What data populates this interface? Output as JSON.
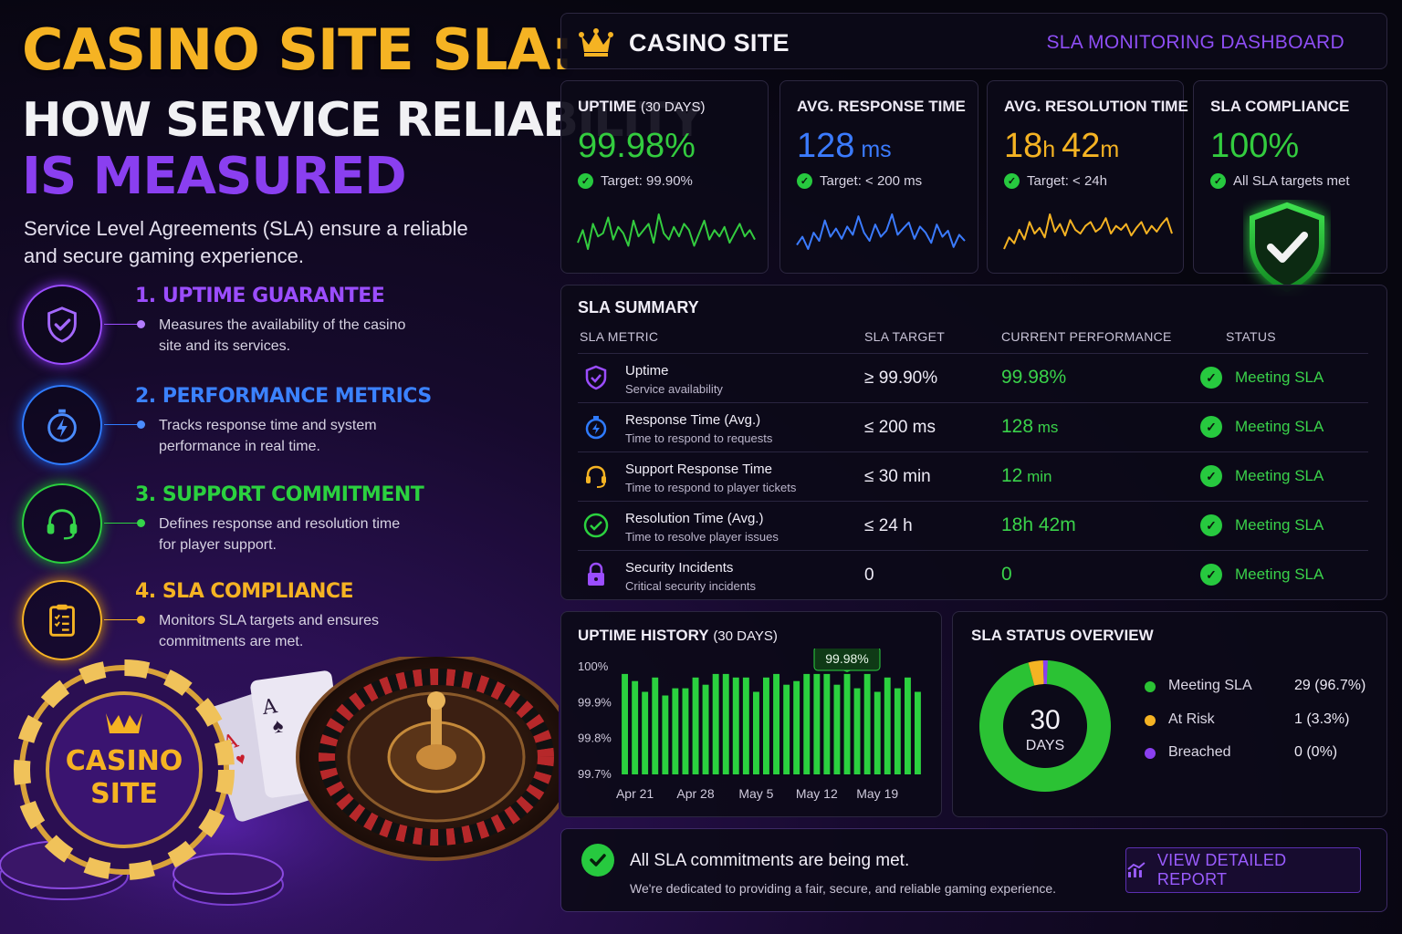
{
  "hero": {
    "line1": "CASINO SITE SLA:",
    "line2": "HOW SERVICE RELIABILITY",
    "line3": "IS MEASURED",
    "subtitle": "Service Level Agreements (SLA) ensure a reliable and secure gaming experience."
  },
  "features": [
    {
      "title": "1. UPTIME GUARANTEE",
      "desc": "Measures the availability of the casino site and its services.",
      "icon": "shield-check-icon",
      "color": "#9b4dff"
    },
    {
      "title": "2. PERFORMANCE METRICS",
      "desc": "Tracks response time and system performance in real time.",
      "icon": "stopwatch-lightning-icon",
      "color": "#2f7bff"
    },
    {
      "title": "3. SUPPORT COMMITMENT",
      "desc": "Defines response and resolution time for player support.",
      "icon": "headset-icon",
      "color": "#2bd13f"
    },
    {
      "title": "4. SLA COMPLIANCE",
      "desc": "Monitors SLA targets and ensures commitments are  met.",
      "icon": "clipboard-checklist-icon",
      "color": "#f5b323"
    }
  ],
  "art": {
    "chip_line1": "CASINO",
    "chip_line2": "SITE"
  },
  "header": {
    "site": "CASINO SITE",
    "dashboard": "SLA MONITORING DASHBOARD"
  },
  "kpis": [
    {
      "title": "UPTIME",
      "title_suffix": "(30 DAYS)",
      "value": "99.98%",
      "unit": "",
      "target": "Target: 99.90%",
      "color": "#33cc3f"
    },
    {
      "title": "AVG. RESPONSE TIME",
      "title_suffix": "",
      "value": "128",
      "unit": " ms",
      "target": "Target: < 200 ms",
      "color": "#3b7bff"
    },
    {
      "title": "AVG. RESOLUTION TIME",
      "title_suffix": "",
      "value_parts": [
        "18",
        "h ",
        "42",
        "m"
      ],
      "target": "Target: < 24h",
      "color": "#f5b323"
    },
    {
      "title": "SLA COMPLIANCE",
      "title_suffix": "",
      "value": "100%",
      "unit": "",
      "target": "All SLA targets met",
      "color": "#33cc3f"
    }
  ],
  "summary": {
    "title": "SLA SUMMARY",
    "columns": [
      "SLA METRIC",
      "SLA TARGET",
      "CURRENT PERFORMANCE",
      "STATUS"
    ],
    "rows": [
      {
        "name": "Uptime",
        "sub": "Service availability",
        "target": "≥ 99.90%",
        "perf": "99.98%",
        "perf_unit": "",
        "status": "Meeting SLA",
        "icon": "shield-check-icon",
        "icon_color": "#9b4dff"
      },
      {
        "name": "Response Time (Avg.)",
        "sub": "Time to respond to requests",
        "target": "≤ 200 ms",
        "perf": "128",
        "perf_unit": " ms",
        "status": "Meeting SLA",
        "icon": "stopwatch-icon",
        "icon_color": "#2f7bff"
      },
      {
        "name": "Support Response Time",
        "sub": "Time to respond to player tickets",
        "target": "≤ 30 min",
        "perf": "12",
        "perf_unit": " min",
        "status": "Meeting SLA",
        "icon": "headset-icon",
        "icon_color": "#f5b323"
      },
      {
        "name": "Resolution Time (Avg.)",
        "sub": "Time to resolve player issues",
        "target": "≤ 24 h",
        "perf": "18h 42m",
        "perf_unit": "",
        "status": "Meeting SLA",
        "icon": "check-circle-icon",
        "icon_color": "#2bd13f"
      },
      {
        "name": "Security Incidents",
        "sub": "Critical security incidents",
        "target": "0",
        "perf": "0",
        "perf_unit": "",
        "status": "Meeting SLA",
        "icon": "lock-icon",
        "icon_color": "#9b4dff"
      }
    ]
  },
  "chart_data": [
    {
      "type": "bar",
      "title": "UPTIME HISTORY",
      "title_suffix": "(30 DAYS)",
      "ylim": [
        99.7,
        100
      ],
      "ytick_labels": [
        "100%",
        "99.9%",
        "99.8%",
        "99.7%"
      ],
      "ytick_values": [
        100,
        99.9,
        99.8,
        99.7
      ],
      "xtick_labels": [
        "Apr 21",
        "Apr 28",
        "May 5",
        "May 12",
        "May 19"
      ],
      "xtick_index": [
        1,
        7,
        13,
        19,
        25
      ],
      "values": [
        99.98,
        99.96,
        99.93,
        99.97,
        99.92,
        99.94,
        99.94,
        99.97,
        99.95,
        99.98,
        99.98,
        99.97,
        99.97,
        99.93,
        99.97,
        99.98,
        99.95,
        99.96,
        99.98,
        99.98,
        99.98,
        99.95,
        99.98,
        99.94,
        99.98,
        99.93,
        99.97,
        99.94,
        99.97,
        99.93
      ],
      "callout": "99.98%",
      "callout_index": 22,
      "color": "#2bd13f"
    },
    {
      "type": "pie",
      "title": "SLA STATUS OVERVIEW",
      "center_value": "30",
      "center_label": "DAYS",
      "slices": [
        {
          "name": "Meeting SLA",
          "value": 29,
          "display": "29 (96.7%)",
          "color": "#2bc234"
        },
        {
          "name": "At Risk",
          "value": 1,
          "display": "1 (3.3%)",
          "color": "#f5b323"
        },
        {
          "name": "Breached",
          "value": 0,
          "display": "0 (0%)",
          "color": "#8a3ff0"
        }
      ]
    }
  ],
  "sparklines": {
    "uptime": [
      12,
      8,
      14,
      6,
      10,
      9,
      4,
      11,
      7,
      9,
      13,
      5,
      10,
      8,
      6,
      12,
      3,
      9,
      11,
      7,
      10,
      6,
      8,
      13,
      9,
      5,
      11,
      8,
      10,
      7,
      12,
      9,
      6,
      10,
      8,
      11
    ],
    "response": [
      18,
      14,
      20,
      12,
      16,
      6,
      14,
      10,
      15,
      9,
      13,
      4,
      12,
      16,
      8,
      14,
      11,
      3,
      13,
      10,
      7,
      15,
      9,
      12,
      17,
      8,
      14,
      11,
      19,
      13,
      16
    ],
    "resolution": [
      20,
      14,
      17,
      10,
      15,
      6,
      12,
      9,
      14,
      2,
      11,
      7,
      13,
      5,
      10,
      12,
      8,
      6,
      11,
      9,
      4,
      12,
      8,
      10,
      7,
      13,
      9,
      6,
      12,
      8,
      11,
      7,
      4,
      12
    ]
  },
  "footer": {
    "main": "All SLA commitments are being met.",
    "sub": "We're dedicated to providing a fair, secure, and reliable gaming experience.",
    "button": "VIEW DETAILED REPORT"
  }
}
